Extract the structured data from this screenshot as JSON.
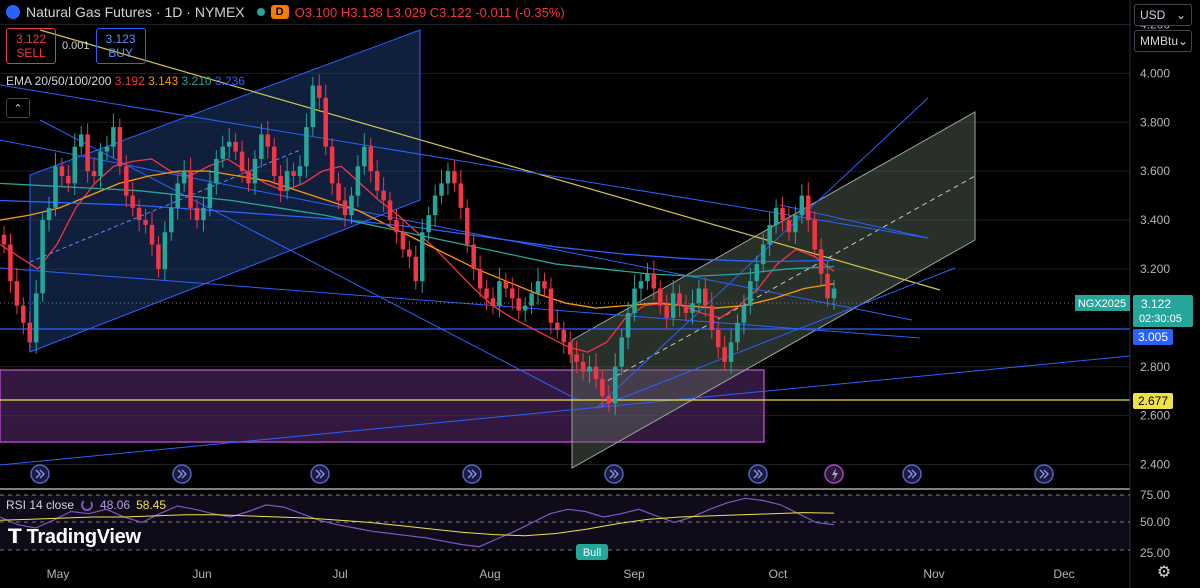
{
  "header": {
    "symbol_title": "Natural Gas Futures · 1D · NYMEX",
    "interval_badge": "D",
    "o": "O3.100",
    "h": "H3.138",
    "l": "L3.029",
    "c": "C3.122",
    "change": "-0.011 (-0.35%)"
  },
  "trade": {
    "sell_price": "3.122",
    "sell_label": "SELL",
    "spread": "0.001",
    "buy_price": "3.123",
    "buy_label": "BUY"
  },
  "ema_legend": {
    "label": "EMA 20/50/100/200",
    "v20": "3.192",
    "v50": "3.143",
    "v100": "3.210",
    "v200": "3.236"
  },
  "controls": {
    "currency": "USD",
    "unit": "MMBtu"
  },
  "rsi_legend": {
    "label": "RSI 14 close",
    "value": "48.06",
    "ma": "58.45"
  },
  "brand": "TradingView",
  "colors": {
    "up": "#26a69a",
    "down": "#f23645",
    "ema20": "#f23645",
    "ema50": "#ff9800",
    "ema100": "#26a69a",
    "ema200": "#2962ff",
    "rsi": "#7e57c2"
  },
  "chart_data": {
    "type": "candlestick",
    "title": "Natural Gas Futures · 1D · NYMEX",
    "ylim": [
      2.3,
      4.3
    ],
    "y_ticks": [
      "4.200",
      "4.000",
      "3.800",
      "3.600",
      "3.400",
      "3.200",
      "2.800",
      "2.600",
      "2.400"
    ],
    "x_ticks": [
      "May",
      "Jun",
      "Jul",
      "Aug",
      "Sep",
      "Oct",
      "Nov",
      "Dec"
    ],
    "price_labels": [
      {
        "name": "NGX2025",
        "value": "3.122",
        "countdown": "02:30:05"
      },
      {
        "value": "3.005"
      },
      {
        "value": "2.677"
      }
    ],
    "candles_close": [
      3.3,
      3.15,
      3.05,
      2.98,
      2.9,
      3.1,
      3.4,
      3.45,
      3.62,
      3.58,
      3.55,
      3.7,
      3.75,
      3.6,
      3.58,
      3.68,
      3.7,
      3.78,
      3.62,
      3.5,
      3.45,
      3.4,
      3.38,
      3.3,
      3.2,
      3.35,
      3.45,
      3.55,
      3.6,
      3.45,
      3.4,
      3.45,
      3.55,
      3.65,
      3.7,
      3.72,
      3.68,
      3.6,
      3.55,
      3.65,
      3.75,
      3.7,
      3.58,
      3.52,
      3.6,
      3.58,
      3.62,
      3.78,
      3.95,
      3.9,
      3.7,
      3.55,
      3.48,
      3.42,
      3.5,
      3.62,
      3.7,
      3.6,
      3.52,
      3.48,
      3.4,
      3.35,
      3.28,
      3.25,
      3.15,
      3.35,
      3.42,
      3.5,
      3.55,
      3.6,
      3.55,
      3.45,
      3.3,
      3.2,
      3.12,
      3.08,
      3.05,
      3.15,
      3.12,
      3.08,
      3.03,
      3.05,
      3.1,
      3.15,
      3.12,
      2.98,
      2.95,
      2.9,
      2.85,
      2.82,
      2.78,
      2.8,
      2.75,
      2.68,
      2.65,
      2.8,
      2.92,
      3.02,
      3.12,
      3.15,
      3.18,
      3.12,
      3.05,
      3.0,
      3.1,
      3.05,
      3.02,
      3.06,
      3.12,
      3.05,
      2.95,
      2.88,
      2.82,
      2.9,
      2.98,
      3.05,
      3.15,
      3.22,
      3.3,
      3.38,
      3.45,
      3.4,
      3.35,
      3.42,
      3.5,
      3.4,
      3.28,
      3.18,
      3.08,
      3.12
    ],
    "ema20": [
      3.3,
      3.25,
      3.2,
      3.3,
      3.45,
      3.55,
      3.62,
      3.64,
      3.65,
      3.6,
      3.58,
      3.62,
      3.65,
      3.6,
      3.55,
      3.52,
      3.55,
      3.6,
      3.62,
      3.55,
      3.48,
      3.42,
      3.35,
      3.28,
      3.2,
      3.12,
      3.05,
      3.0,
      2.96,
      2.92,
      2.88,
      2.86,
      2.9,
      3.0,
      3.05,
      3.06,
      3.05,
      3.02,
      3.0,
      3.05,
      3.12,
      3.22,
      3.28,
      3.25,
      3.19
    ],
    "ema50": [
      3.4,
      3.42,
      3.45,
      3.5,
      3.55,
      3.58,
      3.6,
      3.6,
      3.58,
      3.56,
      3.52,
      3.48,
      3.44,
      3.38,
      3.32,
      3.26,
      3.2,
      3.15,
      3.1,
      3.06,
      3.04,
      3.05,
      3.06,
      3.05,
      3.04,
      3.05,
      3.08,
      3.12,
      3.14
    ],
    "ema100": [
      3.55,
      3.54,
      3.53,
      3.52,
      3.5,
      3.48,
      3.45,
      3.42,
      3.38,
      3.34,
      3.3,
      3.26,
      3.22,
      3.2,
      3.18,
      3.17,
      3.18,
      3.2,
      3.21
    ],
    "ema200": [
      3.48,
      3.47,
      3.46,
      3.44,
      3.42,
      3.4,
      3.37,
      3.33,
      3.29,
      3.26,
      3.24,
      3.23,
      3.235
    ],
    "rsi": [
      55,
      48,
      45,
      52,
      60,
      58,
      62,
      55,
      50,
      58,
      65,
      62,
      58,
      55,
      60,
      66,
      64,
      58,
      52,
      48,
      45,
      42,
      40,
      38,
      36,
      33,
      30,
      28,
      35,
      42,
      50,
      58,
      62,
      60,
      55,
      58,
      62,
      56,
      50,
      55,
      62,
      68,
      72,
      70,
      66,
      58,
      50,
      48
    ],
    "rsi_ma": [
      52,
      53,
      54,
      55,
      55,
      56,
      57,
      57,
      56,
      55,
      54,
      52,
      50,
      47,
      44,
      41,
      39,
      38,
      40,
      44,
      49,
      53,
      55,
      56,
      57,
      58,
      59,
      58.5
    ],
    "rsi_levels": [
      "75.00",
      "50.00",
      "25.00"
    ],
    "rsi_signal": "Bull"
  }
}
